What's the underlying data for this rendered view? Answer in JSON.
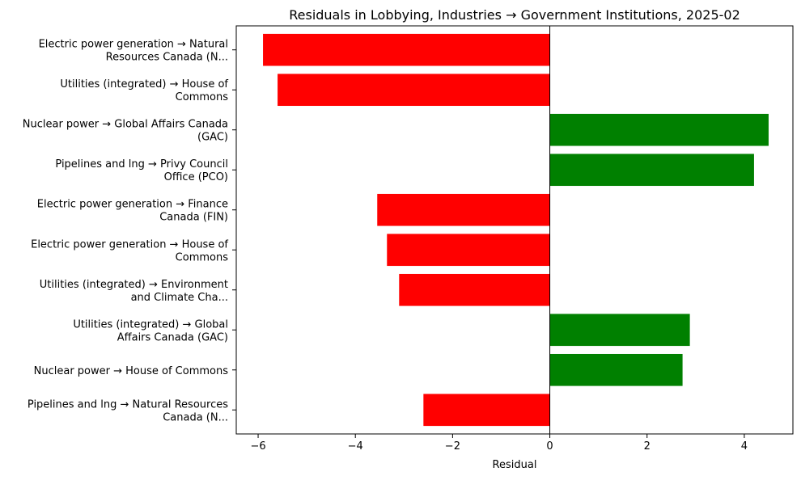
{
  "chart_data": {
    "type": "bar",
    "orientation": "horizontal",
    "title": "Residuals in Lobbying, Industries → Government Institutions, 2025-02",
    "xlabel": "Residual",
    "ylabel": "",
    "xlim": [
      -6.45,
      5.0
    ],
    "xticks": [
      -6,
      -4,
      -2,
      0,
      2,
      4
    ],
    "xtick_labels": [
      "−6",
      "−4",
      "−2",
      "0",
      "2",
      "4"
    ],
    "grid": false,
    "legend": "none",
    "colors": {
      "positive": "#008000",
      "negative": "#ff0000",
      "zero_line": "#000000"
    },
    "categories": [
      [
        "Electric power generation → Natural",
        "Resources Canada (N..."
      ],
      [
        "Utilities (integrated) → House of",
        "Commons"
      ],
      [
        "Nuclear power → Global Affairs Canada",
        "(GAC)"
      ],
      [
        "Pipelines and lng → Privy Council",
        "Office (PCO)"
      ],
      [
        "Electric power generation → Finance",
        "Canada (FIN)"
      ],
      [
        "Electric power generation → House of",
        "Commons"
      ],
      [
        "Utilities (integrated) → Environment",
        "and Climate Cha..."
      ],
      [
        "Utilities (integrated) → Global",
        "Affairs Canada (GAC)"
      ],
      [
        "Nuclear power → House of Commons"
      ],
      [
        "Pipelines and lng → Natural Resources",
        "Canada (N..."
      ]
    ],
    "values": [
      -5.9,
      -5.6,
      4.5,
      4.2,
      -3.55,
      -3.35,
      -3.1,
      2.88,
      2.73,
      -2.6
    ]
  }
}
